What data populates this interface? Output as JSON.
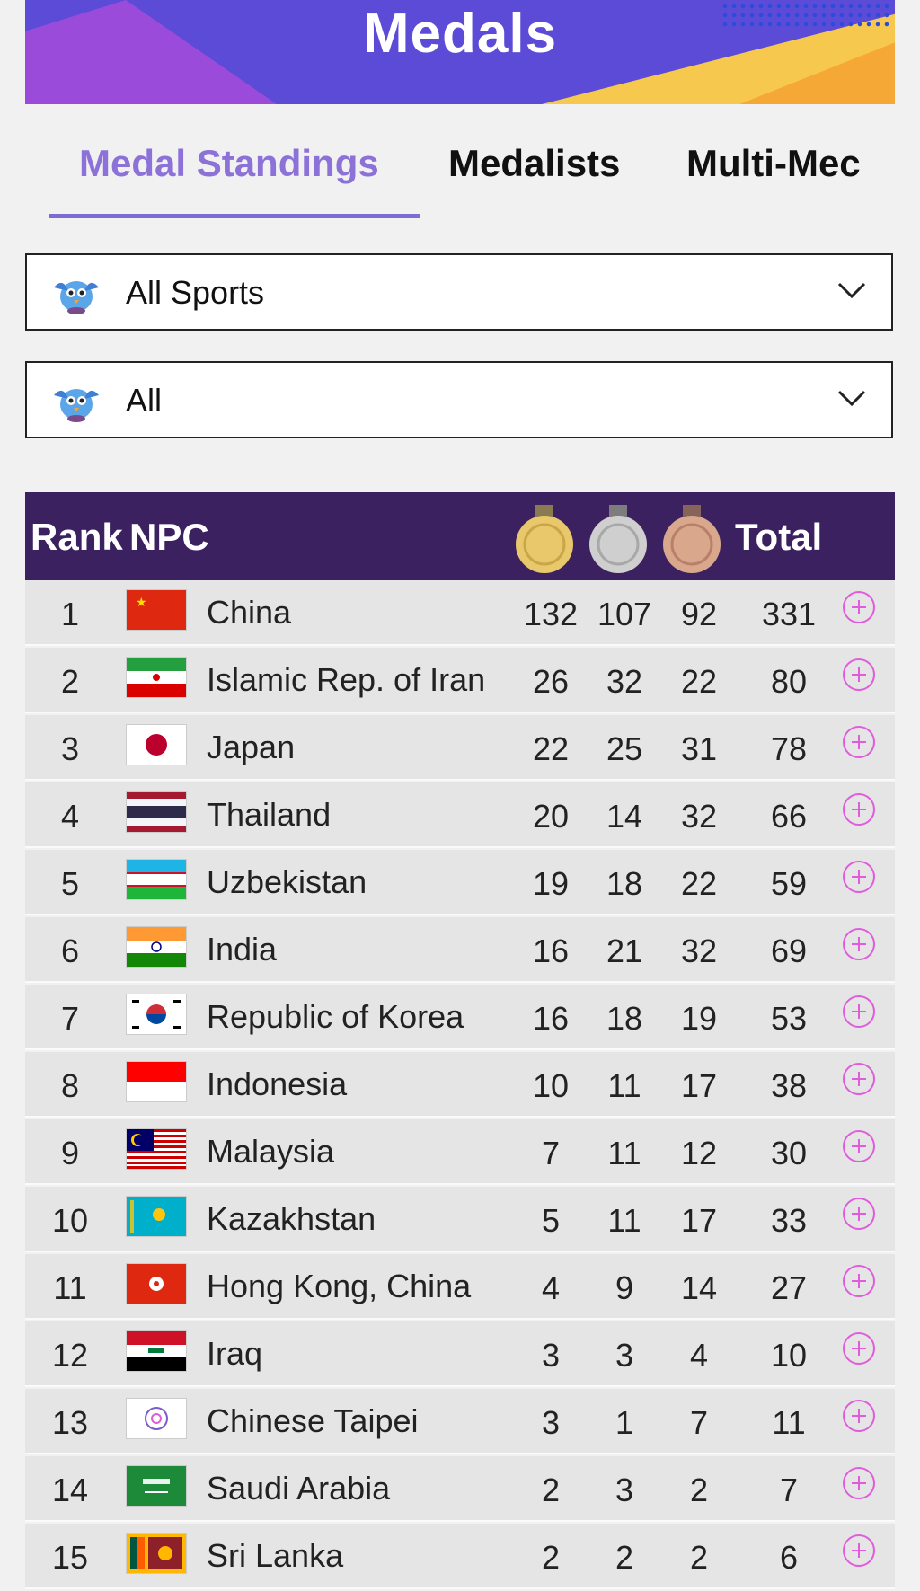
{
  "header": {
    "title": "Medals"
  },
  "tabs": [
    {
      "label": "Medal Standings",
      "active": true
    },
    {
      "label": "Medalists",
      "active": false
    },
    {
      "label": "Multi-Mec",
      "active": false
    }
  ],
  "filters": {
    "sport": {
      "value": "All Sports",
      "icon": "mascot-icon"
    },
    "category": {
      "value": "All",
      "icon": "mascot-icon"
    }
  },
  "table": {
    "headers": {
      "rank": "Rank",
      "npc": "NPC",
      "total": "Total",
      "gold": "gold-medal-icon",
      "silver": "silver-medal-icon",
      "bronze": "bronze-medal-icon"
    },
    "rows": [
      {
        "rank": "1",
        "npc": "China",
        "gold": "132",
        "silver": "107",
        "bronze": "92",
        "total": "331",
        "flag": "flag-china"
      },
      {
        "rank": "2",
        "npc": "Islamic Rep. of Iran",
        "gold": "26",
        "silver": "32",
        "bronze": "22",
        "total": "80",
        "flag": "flag-iran"
      },
      {
        "rank": "3",
        "npc": "Japan",
        "gold": "22",
        "silver": "25",
        "bronze": "31",
        "total": "78",
        "flag": "flag-japan"
      },
      {
        "rank": "4",
        "npc": "Thailand",
        "gold": "20",
        "silver": "14",
        "bronze": "32",
        "total": "66",
        "flag": "flag-thailand"
      },
      {
        "rank": "5",
        "npc": "Uzbekistan",
        "gold": "19",
        "silver": "18",
        "bronze": "22",
        "total": "59",
        "flag": "flag-uzbekistan"
      },
      {
        "rank": "6",
        "npc": "India",
        "gold": "16",
        "silver": "21",
        "bronze": "32",
        "total": "69",
        "flag": "flag-india"
      },
      {
        "rank": "7",
        "npc": "Republic of Korea",
        "gold": "16",
        "silver": "18",
        "bronze": "19",
        "total": "53",
        "flag": "flag-korea"
      },
      {
        "rank": "8",
        "npc": "Indonesia",
        "gold": "10",
        "silver": "11",
        "bronze": "17",
        "total": "38",
        "flag": "flag-indonesia"
      },
      {
        "rank": "9",
        "npc": "Malaysia",
        "gold": "7",
        "silver": "11",
        "bronze": "12",
        "total": "30",
        "flag": "flag-malaysia"
      },
      {
        "rank": "10",
        "npc": "Kazakhstan",
        "gold": "5",
        "silver": "11",
        "bronze": "17",
        "total": "33",
        "flag": "flag-kazakhstan"
      },
      {
        "rank": "11",
        "npc": "Hong Kong, China",
        "gold": "4",
        "silver": "9",
        "bronze": "14",
        "total": "27",
        "flag": "flag-hong-kong"
      },
      {
        "rank": "12",
        "npc": "Iraq",
        "gold": "3",
        "silver": "3",
        "bronze": "4",
        "total": "10",
        "flag": "flag-iraq"
      },
      {
        "rank": "13",
        "npc": "Chinese Taipei",
        "gold": "3",
        "silver": "1",
        "bronze": "7",
        "total": "11",
        "flag": "flag-chinese-taipei"
      },
      {
        "rank": "14",
        "npc": "Saudi Arabia",
        "gold": "2",
        "silver": "3",
        "bronze": "2",
        "total": "7",
        "flag": "flag-saudi-arabia"
      },
      {
        "rank": "15",
        "npc": "Sri Lanka",
        "gold": "2",
        "silver": "2",
        "bronze": "2",
        "total": "6",
        "flag": "flag-sri-lanka"
      }
    ]
  },
  "colors": {
    "accent": "#8b71d8",
    "header_bg": "#3c2160",
    "plus": "#e05cdc",
    "banner": "#5b4bd6"
  }
}
